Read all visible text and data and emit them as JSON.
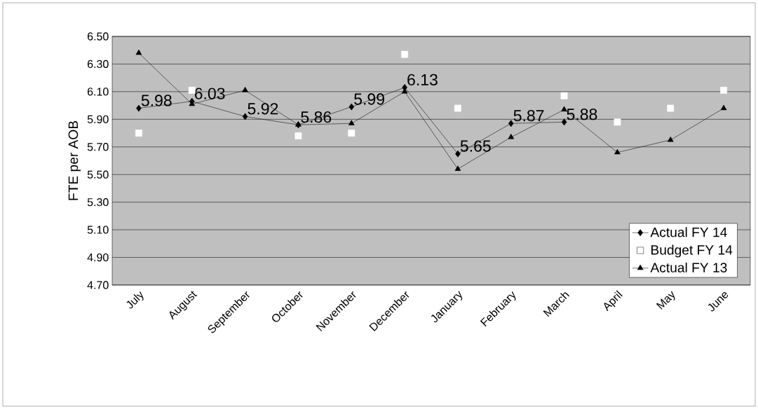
{
  "chart_data": {
    "type": "line",
    "ylabel": "FTE per AOB",
    "categories": [
      "July",
      "August",
      "September",
      "October",
      "November",
      "December",
      "January",
      "February",
      "March",
      "April",
      "May",
      "June"
    ],
    "ylim": [
      4.7,
      6.5
    ],
    "yticks": [
      {
        "value": 4.7,
        "label": "4.70"
      },
      {
        "value": 4.9,
        "label": "4.90"
      },
      {
        "value": 5.1,
        "label": "5.10"
      },
      {
        "value": 5.3,
        "label": "5.30"
      },
      {
        "value": 5.5,
        "label": "5.50"
      },
      {
        "value": 5.7,
        "label": "5.70"
      },
      {
        "value": 5.9,
        "label": "5.90"
      },
      {
        "value": 6.1,
        "label": "6.10"
      },
      {
        "value": 6.3,
        "label": "6.30"
      },
      {
        "value": 6.5,
        "label": "6.50"
      }
    ],
    "grid": "y",
    "legend": "bottom right",
    "series": [
      {
        "name": "Actual FY 14",
        "color": "#000000",
        "marker": "diamond",
        "values": [
          5.98,
          6.03,
          5.92,
          5.86,
          5.99,
          6.13,
          5.65,
          5.87,
          5.88,
          null,
          null,
          null
        ],
        "value_labels": [
          "5.98",
          "6.03",
          "5.92",
          "5.86",
          "5.99",
          "6.13",
          "5.65",
          "5.87",
          "5.88",
          null,
          null,
          null
        ]
      },
      {
        "name": "Budget FY 14",
        "type": "scatter",
        "color": "#ffffff",
        "marker": "square",
        "values": [
          5.8,
          6.11,
          null,
          5.78,
          5.8,
          6.37,
          5.98,
          null,
          6.07,
          5.88,
          5.98,
          6.11
        ]
      },
      {
        "name": "Actual FY 13",
        "color": "#000000",
        "marker": "triangle",
        "values": [
          6.38,
          6.01,
          6.11,
          5.86,
          5.87,
          6.1,
          5.54,
          5.77,
          5.97,
          5.66,
          5.75,
          5.98
        ]
      }
    ]
  }
}
